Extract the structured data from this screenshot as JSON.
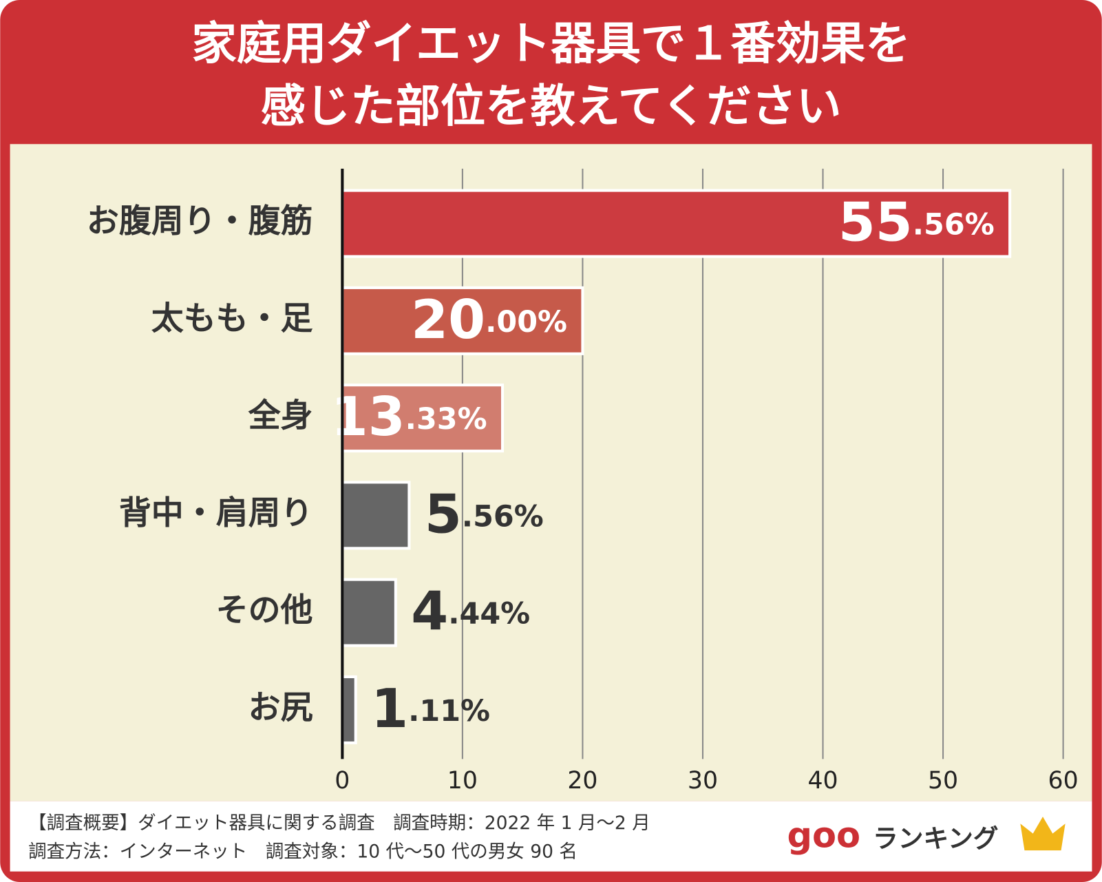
{
  "chart_data": {
    "type": "hbar",
    "title": [
      "家庭用ダイエット器具で１番効果を",
      "感じた部位を教えてください"
    ],
    "categories": [
      "お腹周り・腹筋",
      "太もも・足",
      "全身",
      "背中・肩周り",
      "その他",
      "お尻"
    ],
    "values": [
      55.56,
      20.0,
      13.33,
      5.56,
      4.44,
      1.11
    ],
    "value_labels": [
      "55.56%",
      "20.00%",
      "13.33%",
      "5.56%",
      "4.44%",
      "1.11%"
    ],
    "colors": [
      "#cc3b40",
      "#c65a4a",
      "#d17d6f",
      "#666666",
      "#666666",
      "#666666"
    ],
    "xlim": [
      0,
      60
    ],
    "xticks": [
      0,
      10,
      20,
      30,
      40,
      50,
      60
    ],
    "grid": true
  },
  "footer": {
    "notes": [
      "【調査概要】ダイエット器具に関する調査　調査時期：2022 年 1 月〜2 月",
      "調査方法：インターネット　調査対象：10 代〜50 代の男女 90 名"
    ],
    "brand": [
      "goo",
      "ランキング"
    ]
  }
}
